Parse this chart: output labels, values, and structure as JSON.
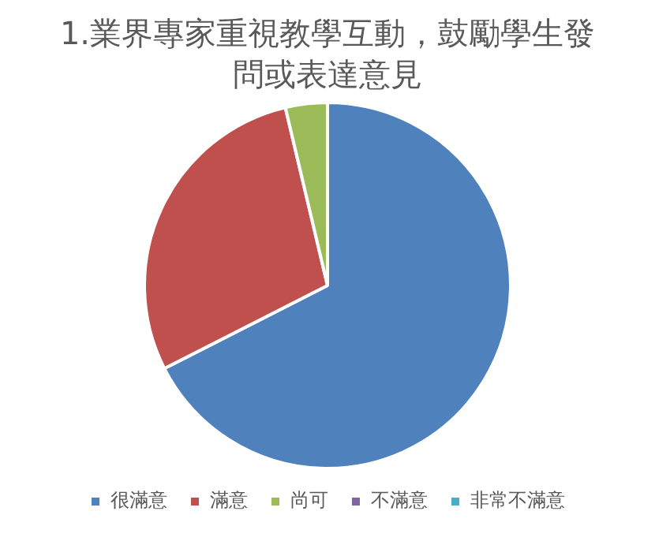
{
  "chart_data": {
    "type": "pie",
    "title": "1.業界專家重視教學互動，鼓勵學生發問或表達意見",
    "categories": [
      "很滿意",
      "滿意",
      "尚可",
      "不滿意",
      "非常不滿意"
    ],
    "values": [
      67.5,
      28.8,
      3.7,
      0,
      0
    ],
    "colors": [
      "#4f81bd",
      "#c0504d",
      "#9bbb59",
      "#8064a2",
      "#4bacc6"
    ],
    "legend": "bottom"
  }
}
